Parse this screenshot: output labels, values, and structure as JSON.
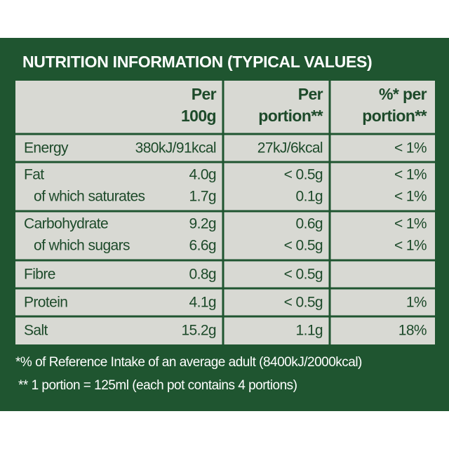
{
  "title": "NUTRITION INFORMATION (TYPICAL VALUES)",
  "table": {
    "header": [
      [
        "Per",
        "100g"
      ],
      [
        "Per",
        "portion**"
      ],
      [
        "%* per",
        "portion**"
      ]
    ],
    "groups": [
      {
        "label": "Energy",
        "values": [
          "380kJ/91kcal",
          "27kJ/6kcal",
          "< 1%"
        ]
      },
      {
        "label": "Fat",
        "values": [
          "4.0g",
          "< 0.5g",
          "< 1%"
        ],
        "sub": {
          "label": "of which saturates",
          "values": [
            "1.7g",
            "0.1g",
            "< 1%"
          ]
        }
      },
      {
        "label": "Carbohydrate",
        "values": [
          "9.2g",
          "0.6g",
          "< 1%"
        ],
        "sub": {
          "label": "of which sugars",
          "values": [
            "6.6g",
            "< 0.5g",
            "< 1%"
          ]
        }
      },
      {
        "label": "Fibre",
        "values": [
          "0.8g",
          "< 0.5g",
          null
        ]
      },
      {
        "label": "Protein",
        "values": [
          "4.1g",
          "< 0.5g",
          "1%"
        ]
      },
      {
        "label": "Salt",
        "values": [
          "15.2g",
          "1.1g",
          "18%"
        ]
      }
    ]
  },
  "footnotes": [
    "*% of Reference Intake of an average adult (8400kJ/2000kcal)",
    "** 1 portion = 125ml (each pot contains 4 portions)"
  ]
}
